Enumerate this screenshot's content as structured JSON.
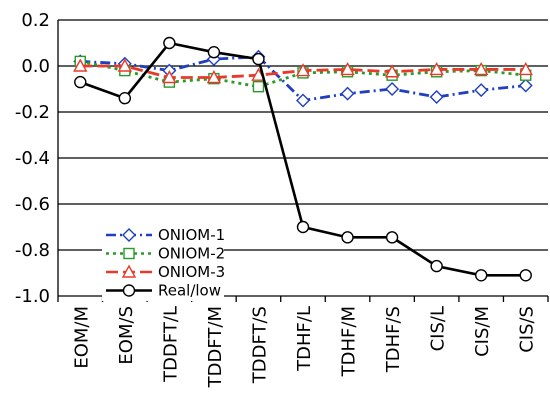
{
  "chart_data": {
    "type": "line",
    "categories": [
      "EOM/M",
      "EOM/S",
      "TDDFT/L",
      "TDDFT/M",
      "TDDFT/S",
      "TDHF/L",
      "TDHF/M",
      "TDHF/S",
      "CIS/L",
      "CIS/M",
      "CIS/S"
    ],
    "ylim": [
      -1.0,
      0.2
    ],
    "yticks": [
      "0.2",
      "0.0",
      "-0.2",
      "-0.4",
      "-0.6",
      "-0.8",
      "-1.0"
    ],
    "grid": "horizontal",
    "legend_position": "lower-left",
    "series": [
      {
        "name": "ONIOM-1",
        "color": "#1f3fbf",
        "marker": "diamond",
        "dash": "dash-dot",
        "values": [
          0.02,
          0.01,
          -0.02,
          0.03,
          0.04,
          -0.15,
          -0.12,
          -0.1,
          -0.135,
          -0.105,
          -0.085
        ]
      },
      {
        "name": "ONIOM-2",
        "color": "#2a9a2a",
        "marker": "square",
        "dash": "dotted",
        "values": [
          0.02,
          -0.02,
          -0.07,
          -0.055,
          -0.09,
          -0.03,
          -0.025,
          -0.04,
          -0.025,
          -0.02,
          -0.04
        ]
      },
      {
        "name": "ONIOM-3",
        "color": "#e83a2a",
        "marker": "triangle",
        "dash": "dashed",
        "values": [
          0.0,
          0.0,
          -0.05,
          -0.05,
          -0.04,
          -0.02,
          -0.015,
          -0.025,
          -0.015,
          -0.015,
          -0.015
        ]
      },
      {
        "name": "Real/low",
        "color": "#000000",
        "marker": "circle",
        "dash": "solid",
        "values": [
          -0.07,
          -0.14,
          0.1,
          0.06,
          0.03,
          -0.7,
          -0.745,
          -0.745,
          -0.87,
          -0.91,
          -0.91
        ]
      }
    ]
  }
}
